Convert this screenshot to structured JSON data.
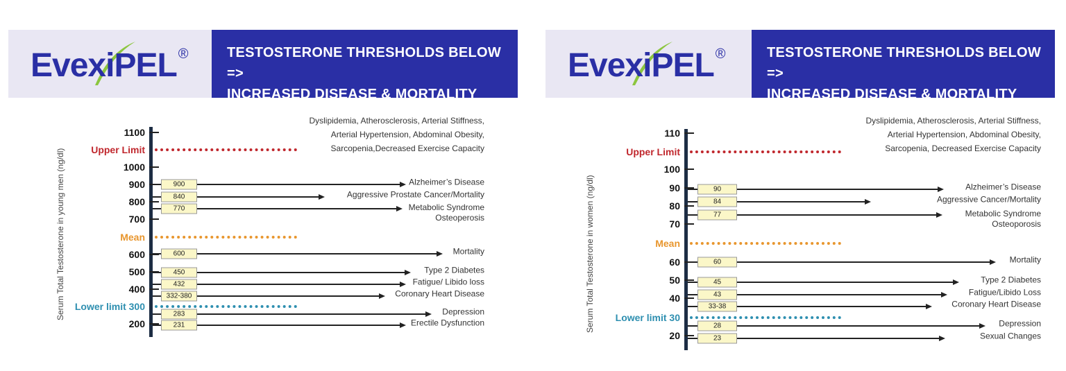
{
  "panels": [
    {
      "logo": "EvexiPEL",
      "registered": "®",
      "title_line1": "TESTOSTERONE THRESHOLDS BELOW =>",
      "title_line2": "INCREASED DISEASE & MORTALITY",
      "y_axis_label": "Serum Total Testosterone in young men (ng/dl)",
      "ticks": [
        "1100",
        "1000",
        "900",
        "800",
        "700",
        "600",
        "500",
        "400",
        "200"
      ],
      "upper_limit": "Upper Limit",
      "mean": "Mean",
      "lower_limit": "Lower limit 300",
      "top_conditions": [
        "Dyslipidemia, Atherosclerosis, Arterial Stiffness,",
        "Arterial Hypertension, Abdominal Obesity,",
        "Sarcopenia,Decreased Exercise Capacity"
      ],
      "rows": [
        {
          "value": "900",
          "label": "Alzheimer’s Disease"
        },
        {
          "value": "840",
          "label": "Aggressive Prostate Cancer/Mortality"
        },
        {
          "value": "770",
          "label": "Metabolic Syndrome\nOsteoperosis"
        },
        {
          "value": "600",
          "label": "Mortality"
        },
        {
          "value": "450",
          "label": "Type 2 Diabetes"
        },
        {
          "value": "432",
          "label": "Fatigue/ Libido loss"
        },
        {
          "value": "332-380",
          "label": "Coronary Heart Disease"
        },
        {
          "value": "283",
          "label": "Depression"
        },
        {
          "value": "231",
          "label": "Erectile Dysfunction"
        }
      ]
    },
    {
      "logo": "EvexiPEL",
      "registered": "®",
      "title_line1": "TESTOSTERONE THRESHOLDS BELOW =>",
      "title_line2": "INCREASED DISEASE & MORTALITY",
      "y_axis_label": "Serum Total Testosterone in women (ng/dl)",
      "ticks": [
        "110",
        "100",
        "90",
        "80",
        "70",
        "60",
        "50",
        "40",
        "20"
      ],
      "upper_limit": "Upper Limit",
      "mean": "Mean",
      "lower_limit": "Lower limit 30",
      "top_conditions": [
        "Dyslipidemia, Atherosclerosis, Arterial Stiffness,",
        "Arterial Hypertension, Abdominal Obesity,",
        "Sarcopenia, Decreased Exercise Capacity"
      ],
      "rows": [
        {
          "value": "90",
          "label": "Alzheimer’s Disease"
        },
        {
          "value": "84",
          "label": "Aggressive Cancer/Mortality"
        },
        {
          "value": "77",
          "label": "Metabolic Syndrome\nOsteoporosis"
        },
        {
          "value": "60",
          "label": "Mortality"
        },
        {
          "value": "45",
          "label": "Type 2 Diabetes"
        },
        {
          "value": "43",
          "label": "Fatigue/Libido Loss"
        },
        {
          "value": "33-38",
          "label": "Coronary Heart Disease"
        },
        {
          "value": "28",
          "label": "Depression"
        },
        {
          "value": "23",
          "label": "Sexual Changes"
        }
      ]
    }
  ],
  "colors": {
    "brand_blue": "#2a2fa5",
    "upper_limit": "#c0272d",
    "mean": "#e8962e",
    "lower_limit": "#2e8fb0",
    "swoosh": "#8cc63f"
  }
}
